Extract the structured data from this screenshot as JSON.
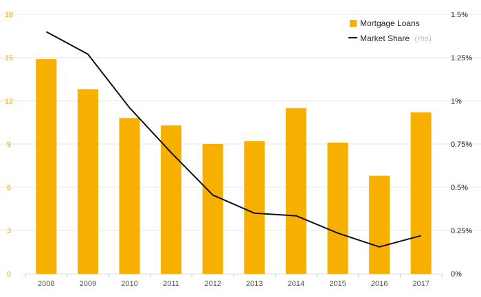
{
  "chart_data": {
    "type": "bar",
    "categories": [
      "2008",
      "2009",
      "2010",
      "2011",
      "2012",
      "2013",
      "2014",
      "2015",
      "2016",
      "2017"
    ],
    "series": [
      {
        "name": "Mortgage Loans",
        "type": "bar",
        "axis": "left",
        "values": [
          14.9,
          12.8,
          10.8,
          10.3,
          9.0,
          9.2,
          11.5,
          9.1,
          6.8,
          11.2
        ]
      },
      {
        "name": "Market Share",
        "name_suffix": "(rhs)",
        "type": "line",
        "axis": "right",
        "values": [
          1.4,
          1.27,
          0.96,
          0.7,
          0.455,
          0.35,
          0.335,
          0.235,
          0.155,
          0.22
        ]
      }
    ],
    "y_left": {
      "ylim": [
        0,
        18
      ],
      "ticks": [
        "0",
        "3",
        "6",
        "9",
        "12",
        "15",
        "18"
      ],
      "values": [
        0,
        3,
        6,
        9,
        12,
        15,
        18
      ]
    },
    "y_right": {
      "ylim": [
        0,
        1.5
      ],
      "ticks": [
        "0%",
        "0.25%",
        "0.5%",
        "0.75%",
        "1%",
        "1.25%",
        "1.5%"
      ],
      "values": [
        0,
        0.25,
        0.5,
        0.75,
        1.0,
        1.25,
        1.5
      ]
    },
    "legend_position": "top-right",
    "grid": true,
    "colors": {
      "bar": "#f7b000",
      "line": "#111111",
      "left_axis_text": "#f0a800",
      "grid": "#e6e6e6"
    }
  }
}
